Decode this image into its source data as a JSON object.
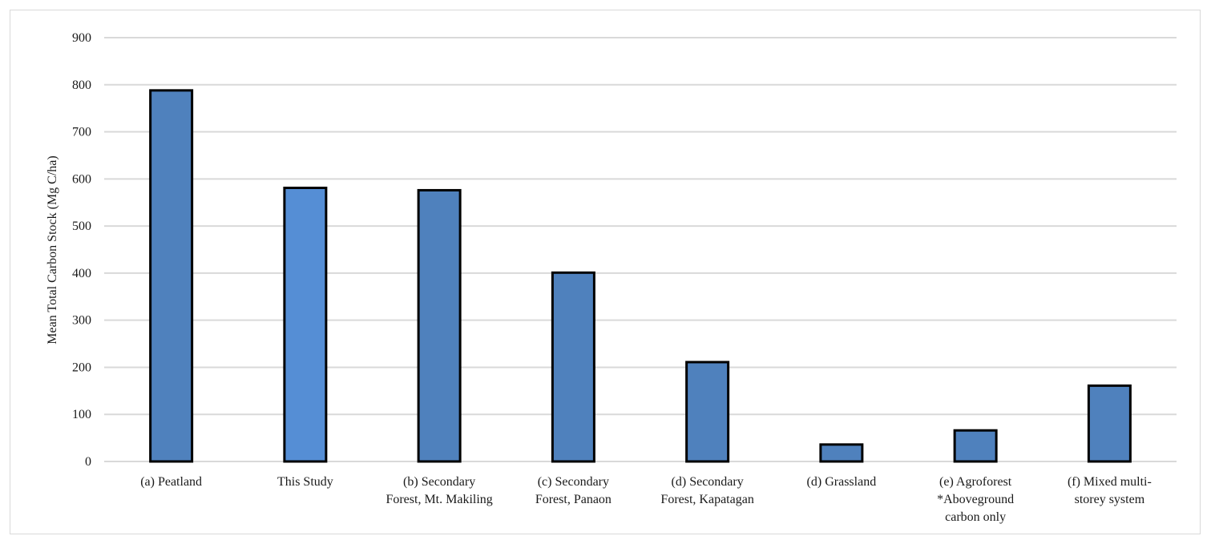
{
  "chart_data": {
    "type": "bar",
    "title": "",
    "xlabel": "",
    "ylabel": "Mean Total Carbon Stock (Mg C/ha)",
    "ylim": [
      0,
      900
    ],
    "yticks": [
      0,
      100,
      200,
      300,
      400,
      500,
      600,
      700,
      800,
      900
    ],
    "grid": true,
    "legend": "none",
    "categories": [
      [
        "(a) Peatland"
      ],
      [
        "This Study"
      ],
      [
        "(b) Secondary",
        "Forest, Mt. Makiling"
      ],
      [
        "(c) Secondary",
        "Forest, Panaon"
      ],
      [
        "(d) Secondary",
        "Forest, Kapatagan"
      ],
      [
        "(d) Grassland"
      ],
      [
        "(e) Agroforest",
        "*Aboveground",
        "carbon only"
      ],
      [
        "(f) Mixed multi-",
        "storey system"
      ]
    ],
    "values": [
      788,
      581,
      576,
      401,
      211,
      36,
      66,
      161
    ],
    "colors": {
      "bar": "#4f81bd",
      "highlight": "#558ed5",
      "outline": "#000000",
      "grid": "#d9d9d9"
    },
    "highlight_index": 1
  }
}
